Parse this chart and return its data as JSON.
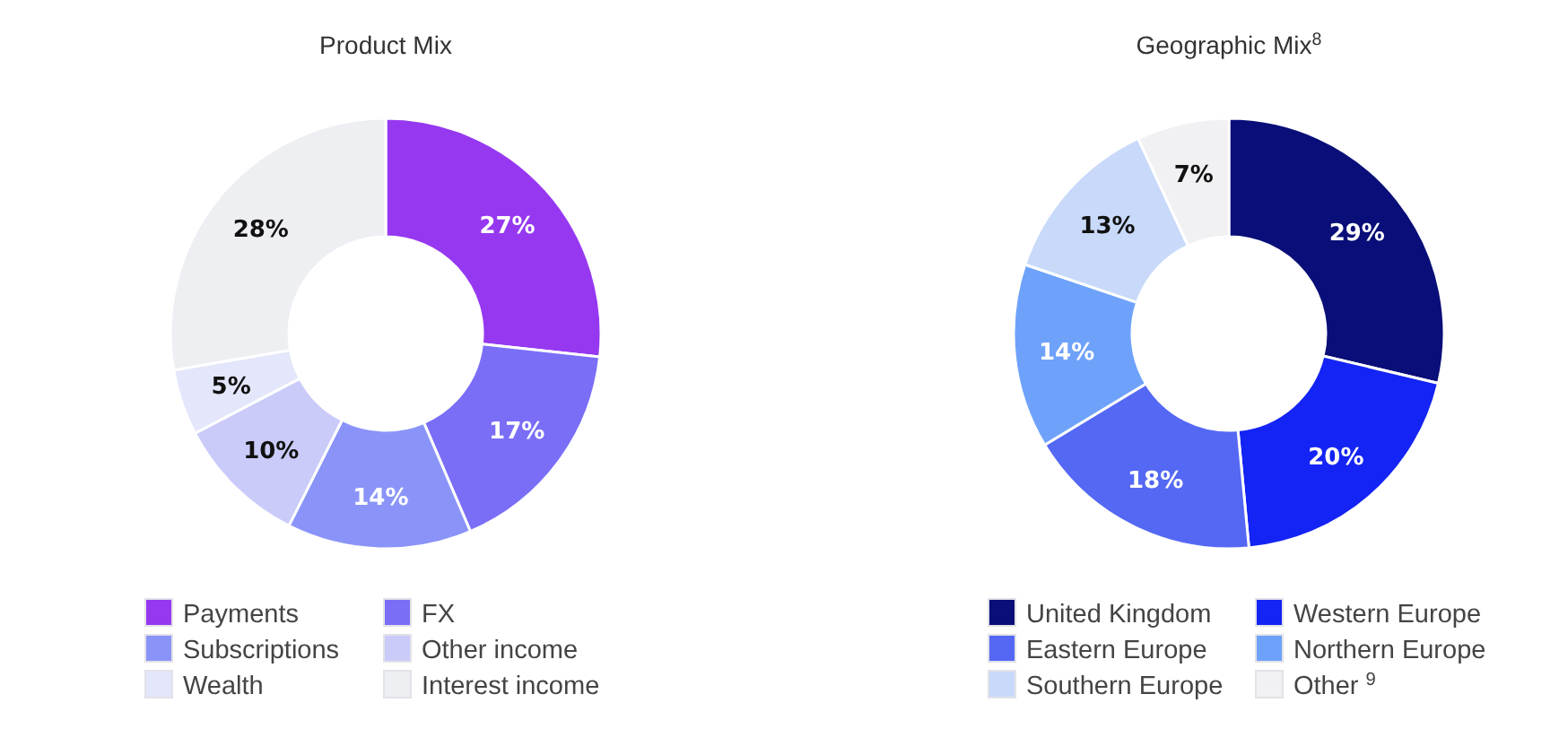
{
  "chart_data": [
    {
      "type": "donut",
      "title": "Product Mix",
      "categories": [
        "Payments",
        "FX",
        "Subscriptions",
        "Other income",
        "Wealth",
        "Interest income"
      ],
      "values": [
        27,
        17,
        14,
        10,
        5,
        28
      ],
      "colors": [
        "#9638f0",
        "#7a6ef7",
        "#8a94f8",
        "#cacbf9",
        "#e4e6fb",
        "#eeeff3"
      ],
      "value_labels": [
        "27%",
        "17%",
        "14%",
        "10%",
        "5%",
        "28%"
      ],
      "legend": "bottom"
    },
    {
      "type": "donut",
      "title": "Geographic Mix$^{8}$",
      "categories": [
        "United Kingdom",
        "Western Europe",
        "Eastern Europe",
        "Northern Europe",
        "Southern Europe",
        "Other $^{9}$"
      ],
      "values": [
        29,
        20,
        18,
        14,
        13,
        7
      ],
      "colors": [
        "#0a0e78",
        "#1424f4",
        "#5468f4",
        "#6ea2fa",
        "#c8d9fa",
        "#f1f1f3"
      ],
      "value_labels": [
        "29%",
        "20%",
        "18%",
        "14%",
        "13%",
        "7%"
      ],
      "legend": "bottom"
    }
  ]
}
